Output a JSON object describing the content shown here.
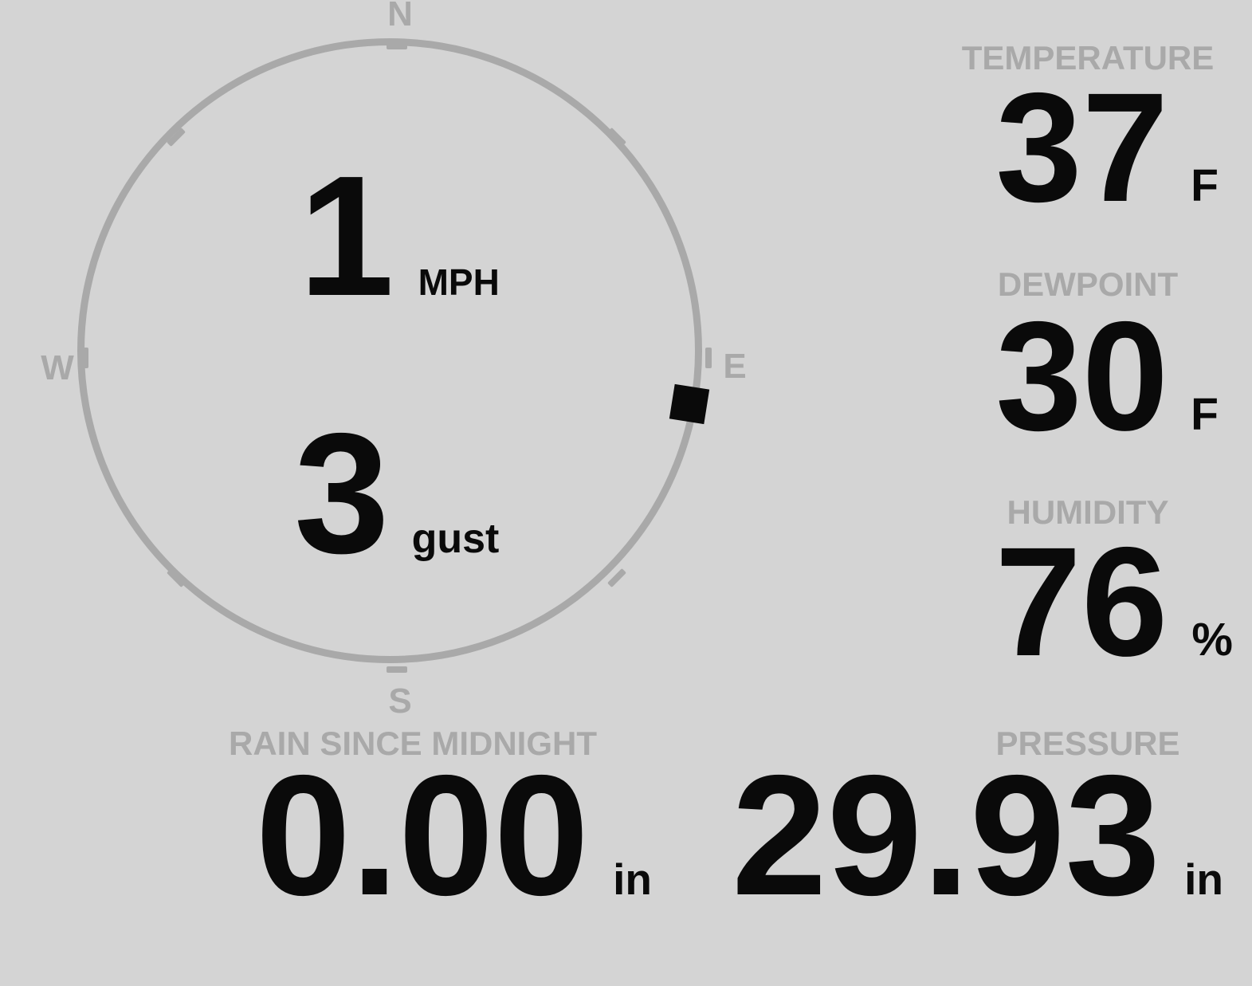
{
  "theme": {
    "background": "#d4d4d4",
    "muted_gray": "#a9a9a9",
    "ink_black": "#0a0a0a"
  },
  "compass": {
    "north_label": "N",
    "east_label": "E",
    "south_label": "S",
    "west_label": "W",
    "speed": {
      "value": "1",
      "unit": "MPH"
    },
    "gust": {
      "value": "3",
      "unit": "gust"
    },
    "direction_degrees": 99
  },
  "metrics": {
    "temperature": {
      "label": "TEMPERATURE",
      "value": "37",
      "unit": "F"
    },
    "dewpoint": {
      "label": "DEWPOINT",
      "value": "30",
      "unit": "F"
    },
    "humidity": {
      "label": "HUMIDITY",
      "value": "76",
      "unit": "%"
    },
    "rain_since_midnight": {
      "label": "RAIN SINCE MIDNIGHT",
      "value": "0.00",
      "unit": "in"
    },
    "pressure": {
      "label": "PRESSURE",
      "value": "29.93",
      "unit": "in"
    }
  }
}
